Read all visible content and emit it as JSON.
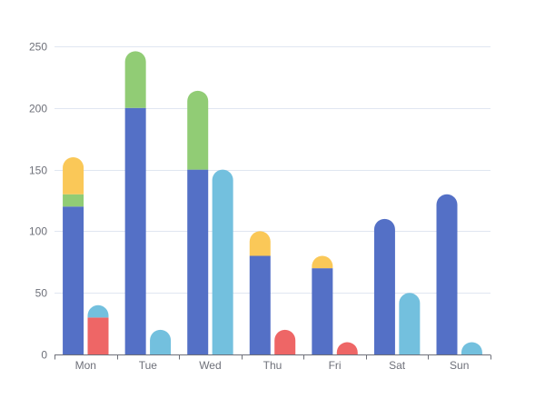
{
  "chart_data": {
    "type": "bar",
    "categories": [
      "Mon",
      "Tue",
      "Wed",
      "Thu",
      "Fri",
      "Sat",
      "Sun"
    ],
    "stacks": [
      [
        {
          "color": "#5470c6",
          "values": [
            120,
            200,
            150,
            80,
            70,
            110,
            130
          ]
        },
        {
          "color": "#91cc75",
          "values": [
            10,
            46,
            64,
            0,
            0,
            0,
            0
          ]
        },
        {
          "color": "#fac858",
          "values": [
            30,
            0,
            0,
            20,
            10,
            0,
            0
          ]
        }
      ],
      [
        {
          "color": "#ee6666",
          "values": [
            30,
            0,
            0,
            20,
            10,
            0,
            0
          ]
        },
        {
          "color": "#73c0de",
          "values": [
            10,
            20,
            150,
            0,
            0,
            50,
            10
          ]
        }
      ]
    ],
    "ylim": [
      0,
      250
    ],
    "yticks": [
      0,
      50,
      100,
      150,
      200,
      250
    ],
    "grid": true,
    "title": "",
    "xlabel": "",
    "ylabel": ""
  }
}
